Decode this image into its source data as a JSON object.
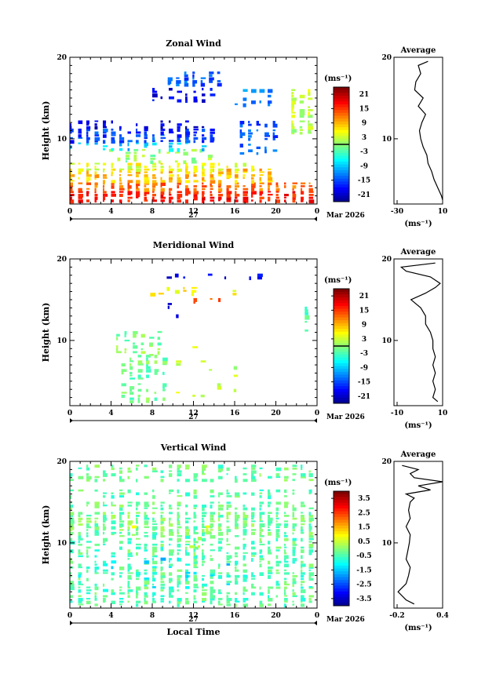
{
  "figure": {
    "date_label": "Mar 2026",
    "day_label": "27",
    "xlabel": "Local Time",
    "ylabel": "Height (km)",
    "x_ticks": [
      "0",
      "4",
      "8",
      "12",
      "16",
      "20",
      "0"
    ],
    "y_ticks": [
      "20",
      "10"
    ],
    "colorbar_unit": "(ms⁻¹)",
    "avg_title": "Average",
    "avg_unit": "(ms⁻¹)"
  },
  "chart_data": [
    {
      "type": "heatmap",
      "title": "Zonal Wind",
      "xlabel": "Local Time",
      "ylabel": "Height (km)",
      "xlim": [
        0,
        24
      ],
      "ylim": [
        2,
        20
      ],
      "colorbar": {
        "ticks": [
          "21",
          "15",
          "9",
          "3",
          "-3",
          "-9",
          "-15",
          "-21"
        ],
        "range": [
          -24,
          24
        ]
      },
      "layers": [
        {
          "z_min": 2.2,
          "z_max": 3.6,
          "x_min": 0,
          "x_max": 24,
          "value": 17,
          "fill": 0.95
        },
        {
          "z_min": 3.6,
          "z_max": 4.6,
          "x_min": 0,
          "x_max": 24,
          "value": 13,
          "fill": 0.9
        },
        {
          "z_min": 4.6,
          "z_max": 6.0,
          "x_min": 0,
          "x_max": 20,
          "value": 9,
          "fill": 0.85
        },
        {
          "z_min": 6.0,
          "z_max": 7.0,
          "x_min": 0,
          "x_max": 18,
          "value": 5,
          "fill": 0.8
        },
        {
          "z_min": 7.0,
          "z_max": 8.5,
          "x_min": 3,
          "x_max": 14,
          "value": 1,
          "fill": 0.35
        },
        {
          "z_min": 8.5,
          "z_max": 9.5,
          "x_min": 0,
          "x_max": 13,
          "value": -8,
          "fill": 0.5
        },
        {
          "z_min": 9.5,
          "z_max": 11.2,
          "x_min": 0,
          "x_max": 14,
          "value": -15,
          "fill": 0.85
        },
        {
          "z_min": 11.2,
          "z_max": 12.2,
          "x_min": 0,
          "x_max": 13,
          "value": -20,
          "fill": 0.6
        },
        {
          "z_min": 8.0,
          "z_max": 12.0,
          "x_min": 16.5,
          "x_max": 20,
          "value": -14,
          "fill": 0.65
        },
        {
          "z_min": 14.5,
          "z_max": 16.0,
          "x_min": 8,
          "x_max": 14,
          "value": -19,
          "fill": 0.5
        },
        {
          "z_min": 16.5,
          "z_max": 18.0,
          "x_min": 9.5,
          "x_max": 15,
          "value": -14,
          "fill": 0.7
        },
        {
          "z_min": 14.0,
          "z_max": 16.0,
          "x_min": 16,
          "x_max": 20,
          "value": -12,
          "fill": 0.3
        },
        {
          "z_min": 10.5,
          "z_max": 16.0,
          "x_min": 21.5,
          "x_max": 23.8,
          "value": 3,
          "fill": 0.8
        }
      ],
      "average_profile": {
        "xlim": [
          -30,
          10
        ],
        "x_ticks": [
          "-30",
          "10"
        ],
        "z": [
          2.5,
          3,
          4,
          5,
          6,
          7,
          8,
          9,
          10,
          11,
          12,
          13,
          14,
          15,
          16,
          17,
          18,
          19,
          19.5
        ],
        "u": [
          10,
          9,
          6,
          3,
          1,
          -2,
          -3,
          -6,
          -8,
          -9,
          -7,
          -4,
          -10,
          -6,
          -13,
          -12,
          -8,
          -10,
          -2
        ]
      }
    },
    {
      "type": "heatmap",
      "title": "Meridional Wind",
      "xlabel": "Local Time",
      "ylabel": "Height (km)",
      "xlim": [
        0,
        24
      ],
      "ylim": [
        2,
        20
      ],
      "colorbar": {
        "ticks": [
          "21",
          "15",
          "9",
          "3",
          "-3",
          "-9",
          "-15",
          "-21"
        ],
        "range": [
          -24,
          24
        ]
      },
      "layers": [
        {
          "z_min": 2.3,
          "z_max": 8.0,
          "x_min": 5,
          "x_max": 9.5,
          "value": -1,
          "fill": 0.5
        },
        {
          "z_min": 8.0,
          "z_max": 11.0,
          "x_min": 4.5,
          "x_max": 9,
          "value": 0,
          "fill": 0.4
        },
        {
          "z_min": 3.0,
          "z_max": 9.0,
          "x_min": 9.5,
          "x_max": 18,
          "value": 3,
          "fill": 0.08
        },
        {
          "z_min": 15.5,
          "z_max": 16.5,
          "x_min": 7,
          "x_max": 17,
          "value": 7,
          "fill": 0.35
        },
        {
          "z_min": 14.5,
          "z_max": 15.2,
          "x_min": 12,
          "x_max": 14.5,
          "value": 13,
          "fill": 0.5
        },
        {
          "z_min": 12.5,
          "z_max": 14.5,
          "x_min": 9.5,
          "x_max": 10.5,
          "value": -18,
          "fill": 0.5
        },
        {
          "z_min": 17.5,
          "z_max": 18.2,
          "x_min": 7,
          "x_max": 21,
          "value": -19,
          "fill": 0.3
        },
        {
          "z_min": 11.0,
          "z_max": 14.0,
          "x_min": 22.8,
          "x_max": 23.6,
          "value": -3,
          "fill": 0.6
        }
      ],
      "average_profile": {
        "xlim": [
          -10,
          10
        ],
        "x_ticks": [
          "-10",
          "10"
        ],
        "z": [
          2.5,
          3,
          4,
          5,
          6,
          7,
          8,
          9,
          10,
          11,
          12,
          13,
          14,
          15,
          15.8,
          16.5,
          17,
          17.8,
          18.5,
          19,
          19.5
        ],
        "u": [
          8,
          6,
          7,
          6,
          7,
          6,
          7,
          6,
          6,
          5,
          3,
          3,
          1,
          -3,
          3,
          7,
          9,
          5,
          -5,
          -7,
          7
        ]
      }
    },
    {
      "type": "heatmap",
      "title": "Vertical Wind",
      "xlabel": "Local Time",
      "ylabel": "Height (km)",
      "xlim": [
        0,
        24
      ],
      "ylim": [
        2,
        20
      ],
      "colorbar": {
        "ticks": [
          "3.5",
          "2.5",
          "1.5",
          "0.5",
          "-0.5",
          "-1.5",
          "-2.5",
          "-3.5"
        ],
        "range": [
          -4,
          4
        ]
      },
      "layers": [
        {
          "z_min": 2.2,
          "z_max": 11.0,
          "x_min": 0,
          "x_max": 24,
          "value": -0.3,
          "fill": 0.6
        },
        {
          "z_min": 11.0,
          "z_max": 13.5,
          "x_min": 0,
          "x_max": 24,
          "value": -0.1,
          "fill": 0.9
        },
        {
          "z_min": 14.0,
          "z_max": 15.0,
          "x_min": 0,
          "x_max": 24,
          "value": -0.2,
          "fill": 0.7
        },
        {
          "z_min": 15.5,
          "z_max": 16.5,
          "x_min": 0,
          "x_max": 24,
          "value": -0.3,
          "fill": 0.5
        },
        {
          "z_min": 17.5,
          "z_max": 19.5,
          "x_min": 0,
          "x_max": 24,
          "value": -0.2,
          "fill": 0.55
        },
        {
          "z_min": 4.0,
          "z_max": 8.0,
          "x_min": 0,
          "x_max": 24,
          "value": -1.2,
          "fill": 0.06
        },
        {
          "z_min": 9.0,
          "z_max": 12.0,
          "x_min": 6,
          "x_max": 14,
          "value": 0.6,
          "fill": 0.08
        }
      ],
      "average_profile": {
        "xlim": [
          -0.2,
          0.4
        ],
        "x_ticks": [
          "-0.2",
          "0.4"
        ],
        "z": [
          2.5,
          3,
          4,
          5,
          6,
          7,
          8,
          9,
          10,
          11,
          12,
          13,
          14,
          15,
          15.5,
          16,
          16.5,
          17,
          17.5,
          18,
          18.5,
          19,
          19.5
        ],
        "u": [
          0.05,
          -0.05,
          -0.15,
          -0.05,
          -0.02,
          0.0,
          -0.05,
          -0.03,
          -0.01,
          0.0,
          -0.05,
          0.0,
          -0.02,
          0.0,
          0.05,
          -0.05,
          0.25,
          0.1,
          0.4,
          0.05,
          0.0,
          0.1,
          -0.1
        ]
      }
    }
  ]
}
